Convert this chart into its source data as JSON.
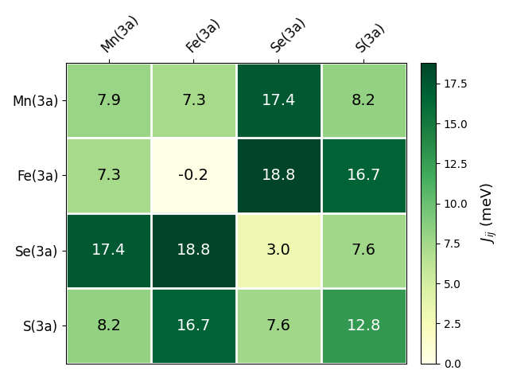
{
  "labels": [
    "Mn(3a)",
    "Fe(3a)",
    "Se(3a)",
    "S(3a)"
  ],
  "matrix": [
    [
      7.9,
      7.3,
      17.4,
      8.2
    ],
    [
      7.3,
      -0.2,
      18.8,
      16.7
    ],
    [
      17.4,
      18.8,
      3.0,
      7.6
    ],
    [
      8.2,
      16.7,
      7.6,
      12.8
    ]
  ],
  "vmin": 0.0,
  "vmax": 18.8,
  "cmap": "YlGn",
  "colorbar_label": "$J_{ij}$ (meV)",
  "colorbar_ticks": [
    0.0,
    2.5,
    5.0,
    7.5,
    10.0,
    12.5,
    15.0,
    17.5
  ],
  "figsize": [
    6.4,
    4.8
  ],
  "dpi": 100
}
